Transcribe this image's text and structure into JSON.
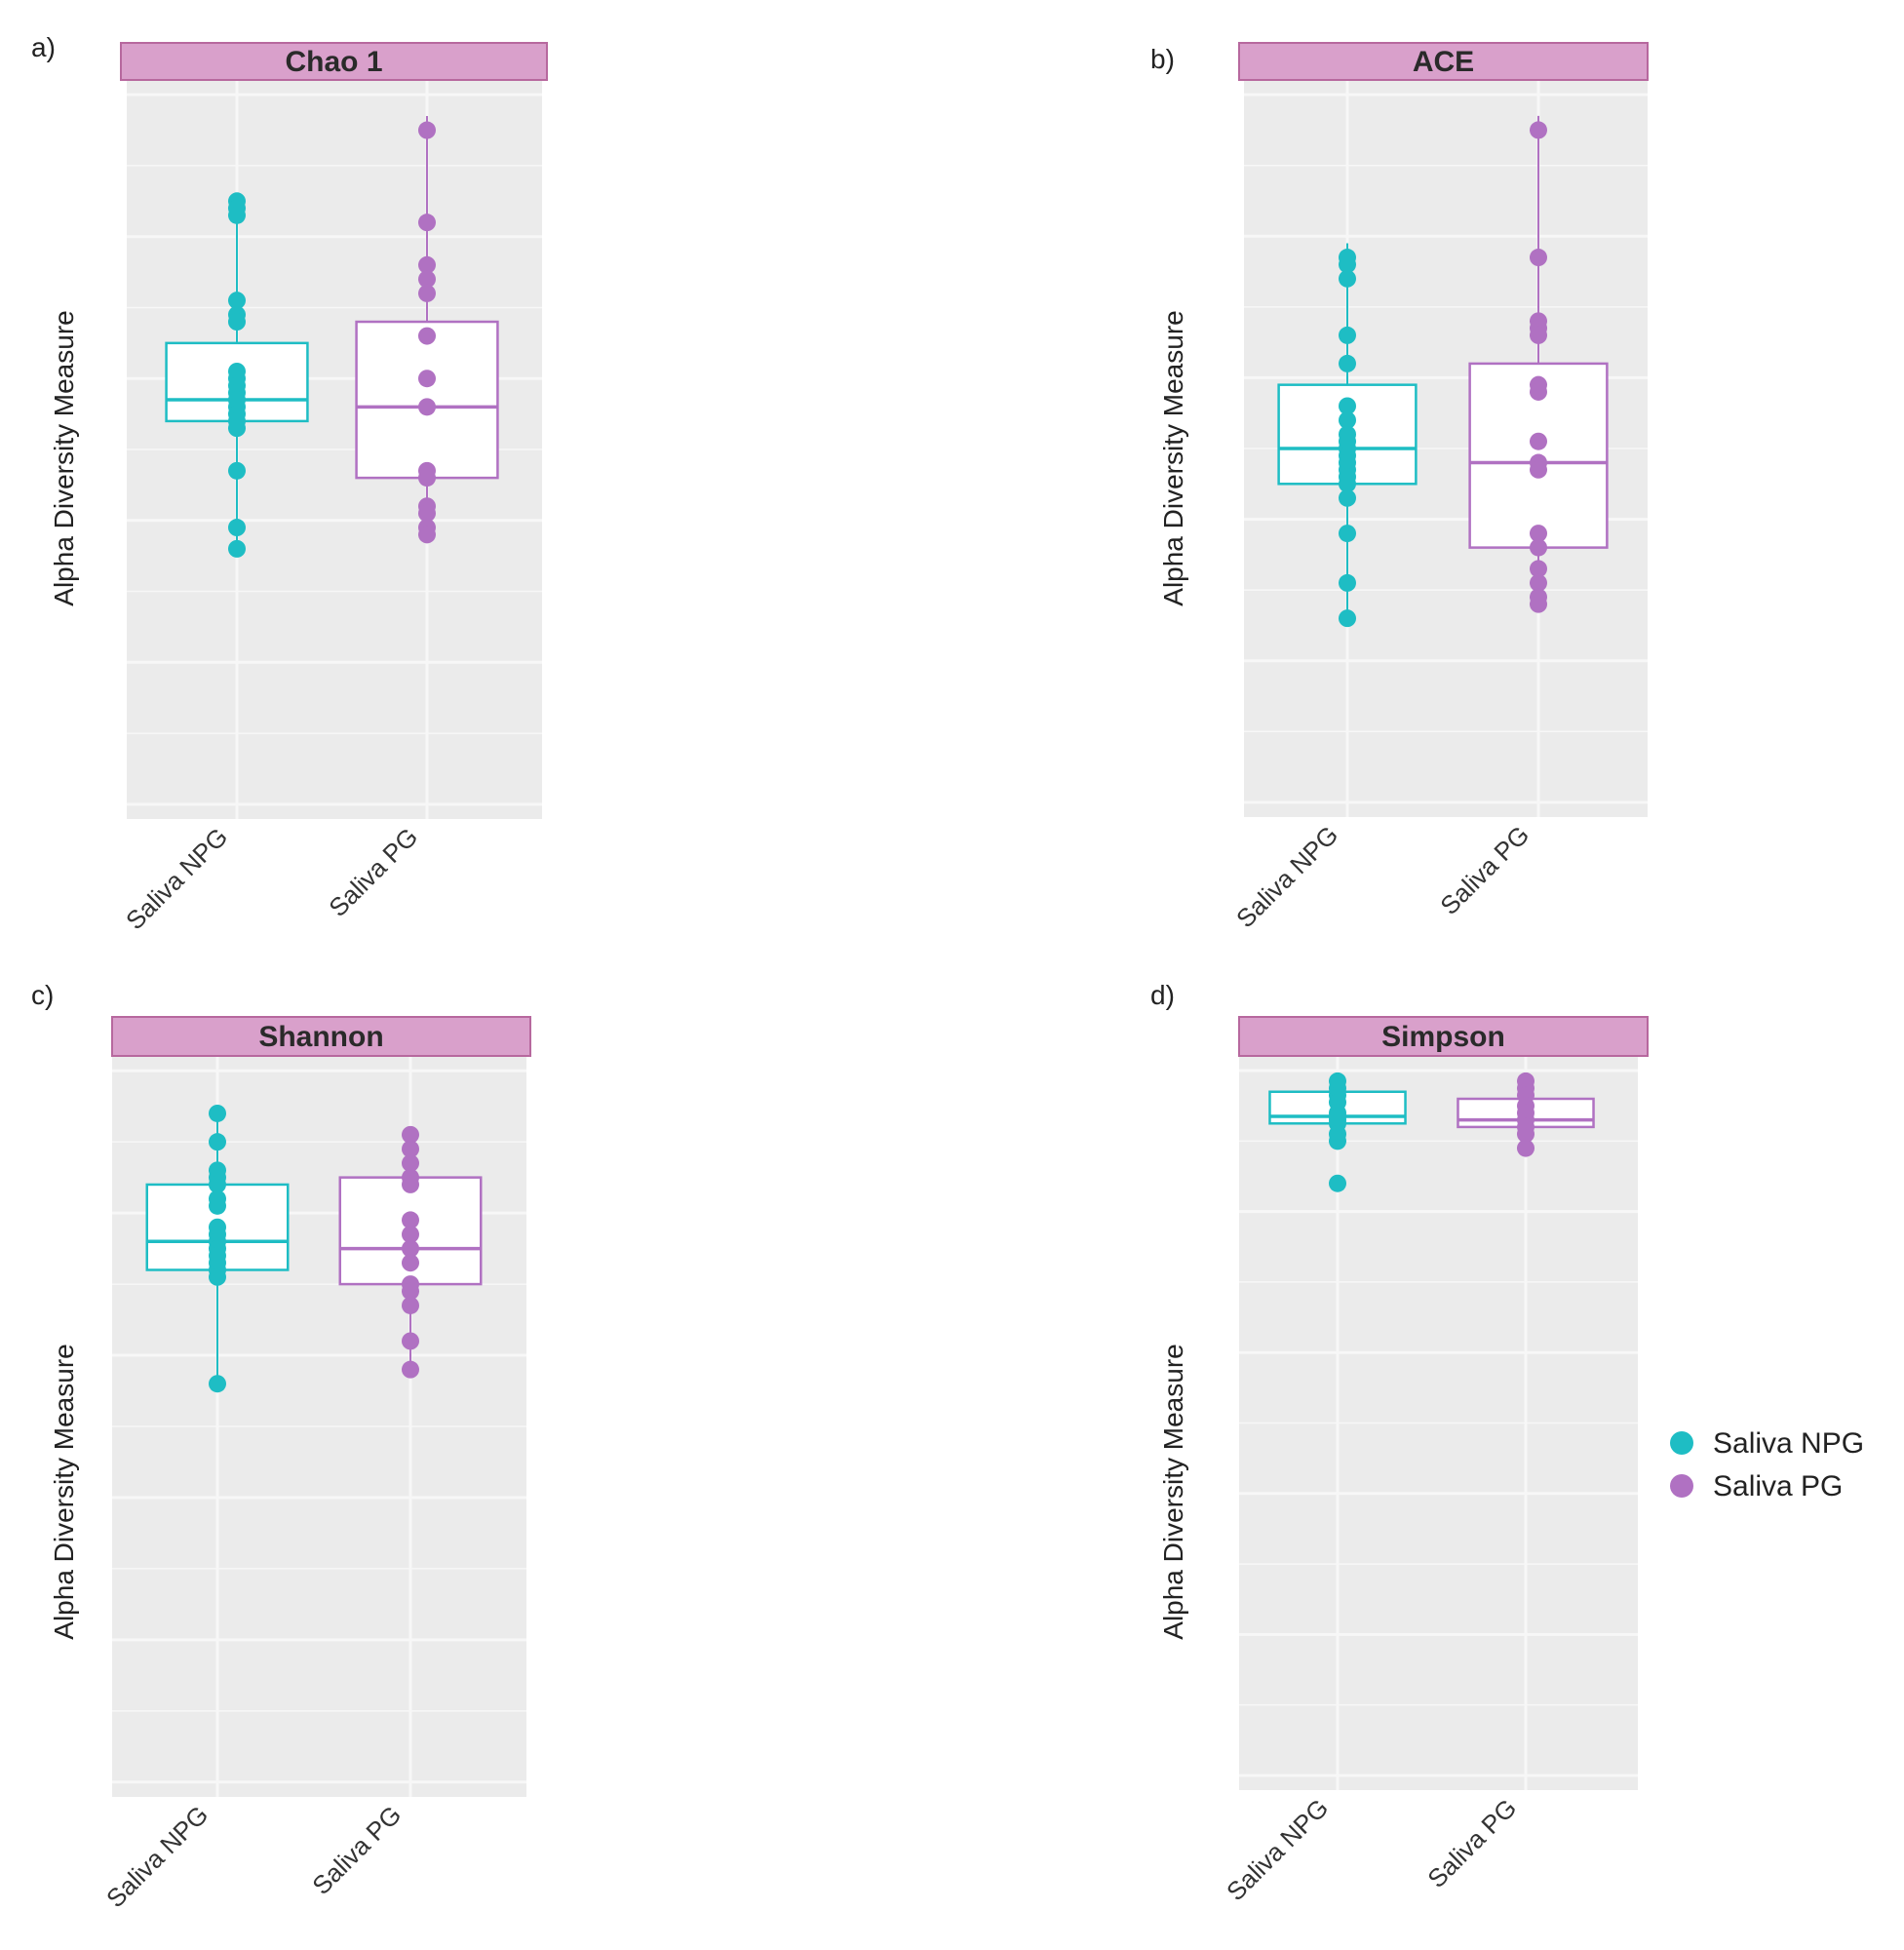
{
  "legend": {
    "items": [
      {
        "label": "Saliva NPG",
        "color": "#1EBDC4"
      },
      {
        "label": "Saliva PG",
        "color": "#B071C2"
      }
    ]
  },
  "colors": {
    "panel_bg": "#EBEBEB",
    "gridline": "#F7F7F7",
    "strip_bg": "#D9A0CB",
    "strip_border": "#B7689E"
  },
  "chart_data": [
    {
      "panel": "a)",
      "title": "Chao 1",
      "type": "box",
      "ylabel": "Alpha Diversity Measure",
      "ylim": [
        0,
        100
      ],
      "categories": [
        "Saliva NPG",
        "Saliva PG"
      ],
      "groups": [
        {
          "name": "Saliva NPG",
          "color": "#1EBDC4",
          "whisker_low": 37,
          "q1": 54,
          "median": 57,
          "q3": 65,
          "whisker_high": 85,
          "points": [
            85,
            84,
            83,
            71,
            69,
            68,
            61,
            60,
            59,
            58,
            57,
            56,
            55,
            54,
            53,
            47,
            39,
            36
          ]
        },
        {
          "name": "Saliva PG",
          "color": "#B071C2",
          "whisker_low": 37,
          "q1": 46,
          "median": 56,
          "q3": 68,
          "whisker_high": 97,
          "points": [
            95,
            82,
            76,
            74,
            72,
            66,
            60,
            56,
            47,
            46,
            42,
            41,
            39,
            38
          ]
        }
      ]
    },
    {
      "panel": "b)",
      "title": "ACE",
      "type": "box",
      "ylabel": "Alpha Diversity Measure",
      "ylim": [
        0,
        100
      ],
      "categories": [
        "Saliva NPG",
        "Saliva PG"
      ],
      "groups": [
        {
          "name": "Saliva NPG",
          "color": "#1EBDC4",
          "whisker_low": 26,
          "q1": 45,
          "median": 50,
          "q3": 59,
          "whisker_high": 79,
          "points": [
            77,
            76,
            74,
            66,
            62,
            56,
            54,
            52,
            51,
            50,
            49,
            48,
            47,
            46,
            45,
            43,
            38,
            31,
            26
          ]
        },
        {
          "name": "Saliva PG",
          "color": "#B071C2",
          "whisker_low": 27,
          "q1": 36,
          "median": 48,
          "q3": 62,
          "whisker_high": 97,
          "points": [
            95,
            77,
            68,
            67,
            66,
            59,
            58,
            51,
            48,
            47,
            38,
            36,
            33,
            31,
            29,
            28
          ]
        }
      ]
    },
    {
      "panel": "c)",
      "title": "Shannon",
      "type": "box",
      "ylabel": "Alpha Diversity Measure",
      "ylim": [
        0,
        100
      ],
      "categories": [
        "Saliva NPG",
        "Saliva PG"
      ],
      "groups": [
        {
          "name": "Saliva NPG",
          "color": "#1EBDC4",
          "whisker_low": 56,
          "q1": 72,
          "median": 76,
          "q3": 84,
          "whisker_high": 94,
          "points": [
            94,
            90,
            86,
            85,
            84,
            82,
            81,
            78,
            77,
            76,
            75,
            74,
            73,
            72,
            71,
            56
          ]
        },
        {
          "name": "Saliva PG",
          "color": "#B071C2",
          "whisker_low": 58,
          "q1": 70,
          "median": 75,
          "q3": 85,
          "whisker_high": 91,
          "points": [
            91,
            89,
            87,
            85,
            84,
            79,
            77,
            75,
            73,
            70,
            69,
            67,
            62,
            58
          ]
        }
      ]
    },
    {
      "panel": "d)",
      "title": "Simpson",
      "type": "box",
      "ylabel": "Alpha Diversity Measure",
      "ylim": [
        0,
        100
      ],
      "categories": [
        "Saliva NPG",
        "Saliva PG"
      ],
      "groups": [
        {
          "name": "Saliva NPG",
          "color": "#1EBDC4",
          "whisker_low": 90,
          "q1": 92.5,
          "median": 93.5,
          "q3": 97,
          "whisker_high": 98.5,
          "points": [
            98.5,
            97.5,
            96.5,
            95.5,
            94,
            93.5,
            93,
            92.5,
            91,
            90,
            84
          ]
        },
        {
          "name": "Saliva PG",
          "color": "#B071C2",
          "whisker_low": 89,
          "q1": 92,
          "median": 93,
          "q3": 96,
          "whisker_high": 98.5,
          "points": [
            98.5,
            97.5,
            96.5,
            95,
            94,
            93,
            92,
            91,
            89
          ]
        }
      ]
    }
  ]
}
